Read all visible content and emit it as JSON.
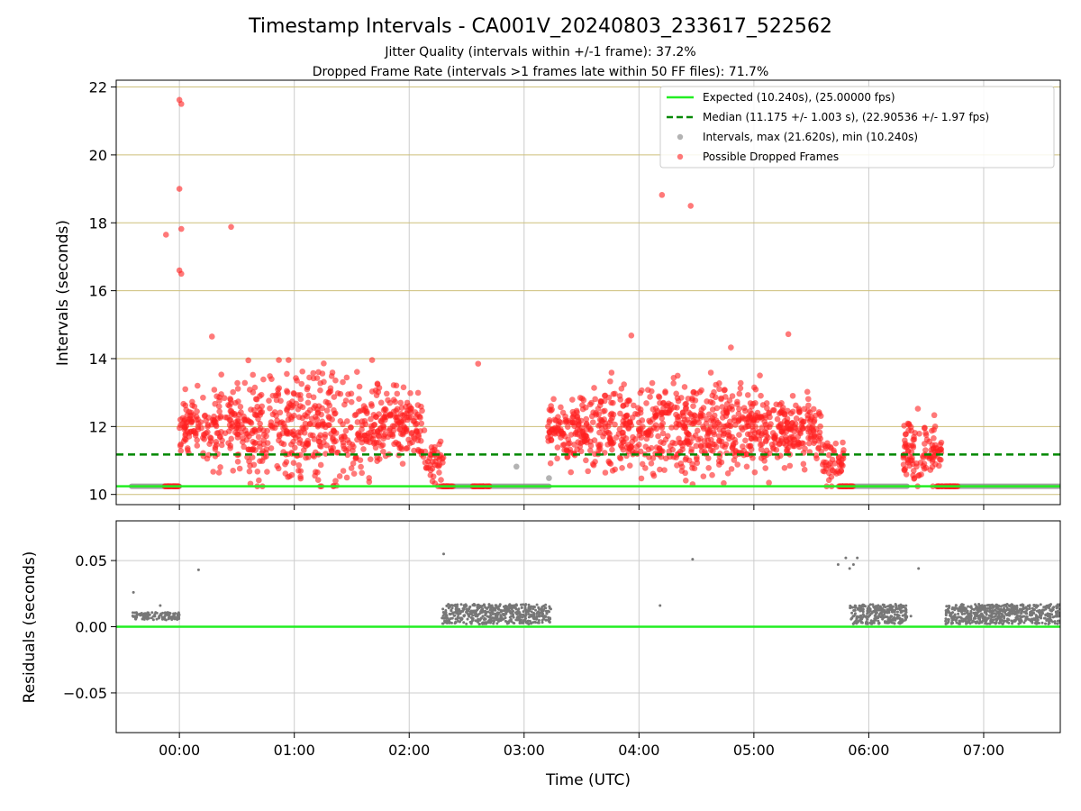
{
  "figure": {
    "title": "Timestamp Intervals - CA001V_20240803_233617_522562",
    "subtitle_1": "Jitter Quality (intervals within +/-1 frame): 37.2%",
    "subtitle_2": "Dropped Frame Rate (intervals >1 frames late within 50 FF files): 71.7%"
  },
  "chart_data": [
    {
      "type": "scatter",
      "ylabel": "Intervals (seconds)",
      "xlim": [
        "-00:33",
        "07:40"
      ],
      "ylim": [
        9.7,
        22.2
      ],
      "yticks": [
        10,
        12,
        14,
        16,
        18,
        20,
        22
      ],
      "grid": "on (vertical grey, horizontal olive)",
      "legend_position": "top-right",
      "legend": [
        {
          "label": "Expected (10.240s), (25.00000 fps)",
          "style": "line",
          "color": "#22ee22"
        },
        {
          "label": "Median (11.175 +/- 1.003 s), (22.90536 +/- 1.97 fps)",
          "style": "dashed",
          "color": "#008800"
        },
        {
          "label": "Intervals, max (21.620s), min (10.240s)",
          "style": "marker",
          "color": "#999999"
        },
        {
          "label": "Possible Dropped Frames",
          "style": "marker",
          "color": "#ff2020"
        }
      ],
      "expected_line": 10.24,
      "median_line": 11.175,
      "clusters": [
        {
          "t_start": "-00:08",
          "t_end": "00:00",
          "center": 10.24,
          "spread": 0.0,
          "count": 30,
          "kind": "dropped"
        },
        {
          "t_start": "00:00",
          "t_end": "02:08",
          "center": 12.0,
          "spread": 1.45,
          "count": 750,
          "kind": "dropped"
        },
        {
          "t_start": "02:08",
          "t_end": "02:18",
          "center": 11.1,
          "spread": 0.7,
          "count": 40,
          "kind": "dropped"
        },
        {
          "t_start": "02:15",
          "t_end": "02:23",
          "center": 10.24,
          "spread": 0.0,
          "count": 30,
          "kind": "dropped"
        },
        {
          "t_start": "02:33",
          "t_end": "02:42",
          "center": 10.24,
          "spread": 0.0,
          "count": 25,
          "kind": "dropped"
        },
        {
          "t_start": "03:12",
          "t_end": "05:35",
          "center": 11.9,
          "spread": 1.25,
          "count": 900,
          "kind": "dropped"
        },
        {
          "t_start": "05:35",
          "t_end": "05:47",
          "center": 11.0,
          "spread": 0.7,
          "count": 50,
          "kind": "dropped"
        },
        {
          "t_start": "05:44",
          "t_end": "05:52",
          "center": 10.24,
          "spread": 0.0,
          "count": 30,
          "kind": "dropped"
        },
        {
          "t_start": "06:18",
          "t_end": "06:38",
          "center": 11.3,
          "spread": 1.0,
          "count": 110,
          "kind": "dropped"
        },
        {
          "t_start": "06:35",
          "t_end": "06:47",
          "center": 10.24,
          "spread": 0.0,
          "count": 35,
          "kind": "dropped"
        }
      ],
      "baseline_segments": [
        {
          "t_start": "-00:25",
          "t_end": "00:00",
          "value": 10.24
        },
        {
          "t_start": "02:18",
          "t_end": "03:13",
          "value": 10.24
        },
        {
          "t_start": "05:50",
          "t_end": "06:20",
          "value": 10.24
        },
        {
          "t_start": "06:42",
          "t_end": "07:40",
          "value": 10.24
        }
      ],
      "outliers_dropped": [
        {
          "t": "-00:07",
          "y": 17.65
        },
        {
          "t": "00:00",
          "y": 21.62
        },
        {
          "t": "00:01",
          "y": 21.5
        },
        {
          "t": "00:00",
          "y": 19.0
        },
        {
          "t": "00:01",
          "y": 17.82
        },
        {
          "t": "00:00",
          "y": 16.6
        },
        {
          "t": "00:01",
          "y": 16.5
        },
        {
          "t": "00:27",
          "y": 17.88
        },
        {
          "t": "00:17",
          "y": 14.65
        },
        {
          "t": "00:36",
          "y": 13.95
        },
        {
          "t": "02:36",
          "y": 13.85
        },
        {
          "t": "03:56",
          "y": 14.68
        },
        {
          "t": "04:12",
          "y": 18.82
        },
        {
          "t": "04:27",
          "y": 18.5
        },
        {
          "t": "04:48",
          "y": 14.33
        },
        {
          "t": "05:18",
          "y": 14.72
        },
        {
          "t": "04:28",
          "y": 10.3
        }
      ],
      "outliers_interval": [
        {
          "t": "02:56",
          "y": 10.82
        },
        {
          "t": "03:13",
          "y": 10.48
        }
      ]
    },
    {
      "type": "scatter",
      "xlabel": "Time (UTC)",
      "ylabel": "Residuals (seconds)",
      "xlim": [
        "-00:33",
        "07:40"
      ],
      "ylim": [
        -0.08,
        0.08
      ],
      "yticks": [
        -0.05,
        0.0,
        0.05
      ],
      "ytick_labels": [
        "−0.05",
        "0.00",
        "0.05"
      ],
      "xticks": [
        "00:00",
        "01:00",
        "02:00",
        "03:00",
        "04:00",
        "05:00",
        "06:00",
        "07:00"
      ],
      "grid": "on (grey)",
      "zero_line": 0.0,
      "bands": [
        {
          "t_start": "-00:25",
          "t_end": "00:00",
          "low": 0.005,
          "high": 0.011,
          "count": 120
        },
        {
          "t_start": "02:17",
          "t_end": "03:14",
          "low": 0.002,
          "high": 0.017,
          "count": 520
        },
        {
          "t_start": "05:50",
          "t_end": "06:20",
          "low": 0.002,
          "high": 0.017,
          "count": 300
        },
        {
          "t_start": "06:40",
          "t_end": "07:40",
          "low": 0.002,
          "high": 0.017,
          "count": 620
        }
      ],
      "outliers": [
        {
          "t": "-00:24",
          "y": 0.026
        },
        {
          "t": "00:10",
          "y": 0.043
        },
        {
          "t": "02:18",
          "y": 0.055
        },
        {
          "t": "04:11",
          "y": 0.016
        },
        {
          "t": "04:28",
          "y": 0.051
        },
        {
          "t": "05:44",
          "y": 0.047
        },
        {
          "t": "05:48",
          "y": 0.052
        },
        {
          "t": "05:50",
          "y": 0.044
        },
        {
          "t": "05:52",
          "y": 0.047
        },
        {
          "t": "05:54",
          "y": 0.052
        },
        {
          "t": "06:26",
          "y": 0.044
        },
        {
          "t": "06:22",
          "y": 0.008
        },
        {
          "t": "-00:10",
          "y": 0.016
        }
      ]
    }
  ]
}
